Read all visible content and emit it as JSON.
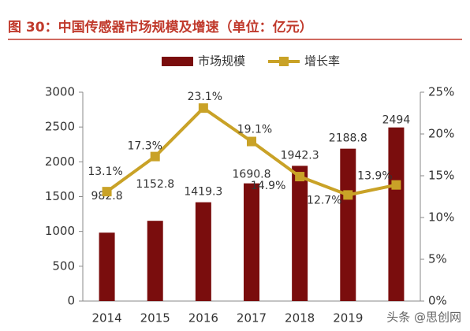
{
  "chart_data": {
    "type": "bar_line",
    "title": "图 30：中国传感器市场规模及增速（单位：亿元）",
    "watermark": "头条 @思创网",
    "categories": [
      "2014",
      "2015",
      "2016",
      "2017",
      "2018",
      "2019",
      null
    ],
    "series": [
      {
        "name": "市场规模",
        "type": "bar",
        "color": "#7a0d0d",
        "values": [
          982.8,
          1152.8,
          1419.3,
          1690.8,
          1942.3,
          2188.8,
          2494
        ]
      },
      {
        "name": "增长率",
        "type": "line",
        "axis": "y2",
        "color": "#c9a227",
        "values": [
          13.1,
          17.3,
          23.1,
          19.1,
          14.9,
          12.7,
          13.9
        ],
        "value_labels": [
          "13.1%",
          "17.3%",
          "23.1%",
          "19.1%",
          "14.9%",
          "12.7%",
          "13.9%"
        ]
      }
    ],
    "ylim": [
      0,
      3000
    ],
    "yticks": [
      0,
      500,
      1000,
      1500,
      2000,
      2500,
      3000
    ],
    "y2lim": [
      0,
      25
    ],
    "y2ticks": [
      {
        "value": 0,
        "label": "0%"
      },
      {
        "value": 5,
        "label": "5%"
      },
      {
        "value": 10,
        "label": "10%"
      },
      {
        "value": 15,
        "label": "15%"
      },
      {
        "value": 20,
        "label": "20%"
      },
      {
        "value": 25,
        "label": "25%"
      }
    ]
  }
}
